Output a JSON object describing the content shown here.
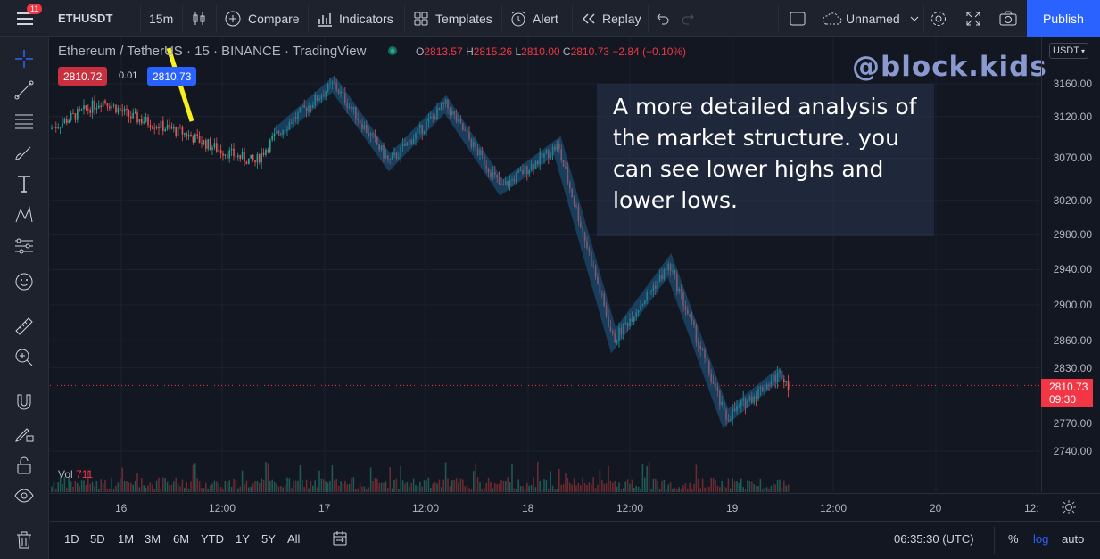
{
  "header": {
    "notification_count": "11",
    "symbol": "ETHUSDT",
    "interval": "15m",
    "compare_label": "Compare",
    "indicators_label": "Indicators",
    "templates_label": "Templates",
    "alert_label": "Alert",
    "replay_label": "Replay",
    "layout_name": "Unnamed",
    "publish_label": "Publish"
  },
  "legend": {
    "title": "Ethereum / TetherUS · 15 · BINANCE · TradingView",
    "open_key": "O",
    "open": "2813.57",
    "high_key": "H",
    "high": "2815.26",
    "low_key": "L",
    "low": "2810.00",
    "close_key": "C",
    "close": "2810.73",
    "change": "−2.84 (−0.10%)",
    "sell_price": "2810.72",
    "spread": "0.01",
    "buy_price": "2810.73",
    "volume_label": "Vol",
    "volume_value": "711"
  },
  "watermark": "@block.kids",
  "annotation": "A more detailed analysis of the market structure. you can see lower highs and lower lows.",
  "price_axis": {
    "currency": "USDT",
    "ticks": [
      "3160.00",
      "3120.00",
      "3070.00",
      "3020.00",
      "2980.00",
      "2940.00",
      "2900.00",
      "2860.00",
      "2830.00",
      "2770.00",
      "2740.00"
    ],
    "current_price": "2810.73",
    "countdown": "09:30"
  },
  "time_axis": {
    "ticks": [
      "16",
      "12:00",
      "17",
      "12:00",
      "18",
      "12:00",
      "19",
      "12:00",
      "20",
      "12:"
    ]
  },
  "bottom_bar": {
    "ranges": [
      "1D",
      "5D",
      "1M",
      "3M",
      "6M",
      "YTD",
      "1Y",
      "5Y",
      "All"
    ],
    "clock": "06:35:30 (UTC)",
    "percent_label": "%",
    "log_label": "log",
    "auto_label": "auto"
  },
  "colors": {
    "up": "#26a69a",
    "down": "#ef5350",
    "accent": "#2962ff",
    "structure_line": "#1f5f8b",
    "arrow": "#f7f01b"
  },
  "chart_data": {
    "type": "candlestick",
    "title": "Ethereum / TetherUS · 15 · BINANCE",
    "ylim": [
      2740,
      3180
    ],
    "structure_points": [
      3100,
      3160,
      3065,
      3135,
      3035,
      3085,
      2860,
      2945,
      2775,
      2825
    ],
    "last_price": 2810.73
  }
}
